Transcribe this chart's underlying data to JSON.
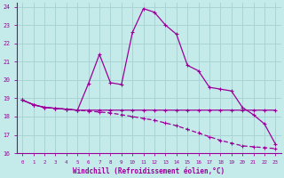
{
  "xlabel": "Windchill (Refroidissement éolien,°C)",
  "background_color": "#c5eaea",
  "line_color": "#990099",
  "grid_color": "#aad4d4",
  "xlim": [
    -0.5,
    23.5
  ],
  "ylim": [
    16,
    24.2
  ],
  "yticks": [
    16,
    17,
    18,
    19,
    20,
    21,
    22,
    23,
    24
  ],
  "xticks": [
    0,
    1,
    2,
    3,
    4,
    5,
    6,
    7,
    8,
    9,
    10,
    11,
    12,
    13,
    14,
    15,
    16,
    17,
    18,
    19,
    20,
    21,
    22,
    23
  ],
  "curve1_x": [
    0,
    1,
    2,
    3,
    4,
    5,
    6,
    7,
    8,
    9,
    10,
    11,
    12,
    13,
    14,
    15,
    16,
    17,
    18,
    19,
    20,
    21,
    22,
    23
  ],
  "curve1_y": [
    18.9,
    18.65,
    18.5,
    18.45,
    18.4,
    18.35,
    18.35,
    18.35,
    18.35,
    18.35,
    18.35,
    18.35,
    18.35,
    18.35,
    18.35,
    18.35,
    18.35,
    18.35,
    18.35,
    18.35,
    18.35,
    18.35,
    18.35,
    18.35
  ],
  "curve2_x": [
    0,
    1,
    2,
    3,
    4,
    5,
    6,
    7,
    8,
    9,
    10,
    11,
    12,
    13,
    14,
    15,
    16,
    17,
    18,
    19,
    20,
    21,
    22,
    23
  ],
  "curve2_y": [
    18.9,
    18.65,
    18.5,
    18.45,
    18.4,
    18.35,
    19.8,
    21.4,
    19.85,
    19.75,
    22.6,
    23.9,
    23.7,
    23.0,
    22.5,
    20.8,
    20.5,
    19.6,
    19.5,
    19.4,
    18.5,
    18.1,
    17.6,
    16.5
  ],
  "curve3_x": [
    0,
    1,
    2,
    3,
    4,
    5,
    6,
    7,
    8,
    9,
    10,
    11,
    12,
    13,
    14,
    15,
    16,
    17,
    18,
    19,
    20,
    21,
    22,
    23
  ],
  "curve3_y": [
    18.9,
    18.65,
    18.5,
    18.45,
    18.4,
    18.35,
    18.3,
    18.25,
    18.2,
    18.1,
    18.0,
    17.9,
    17.8,
    17.65,
    17.5,
    17.3,
    17.1,
    16.9,
    16.7,
    16.55,
    16.4,
    16.35,
    16.3,
    16.25
  ]
}
